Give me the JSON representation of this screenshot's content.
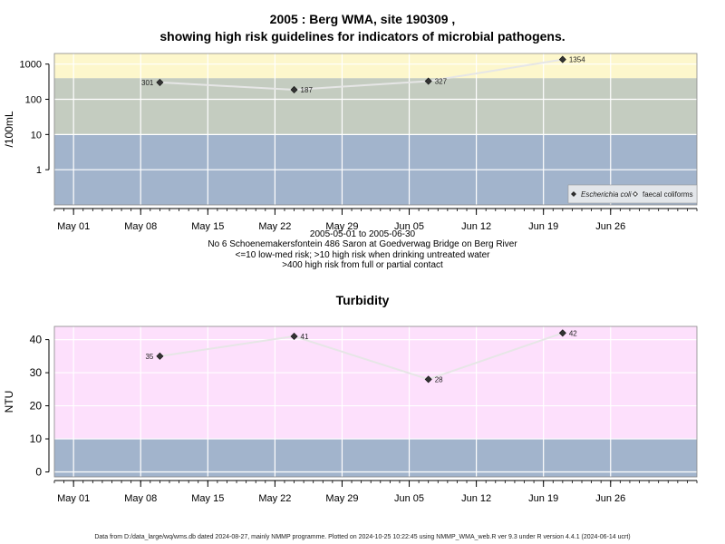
{
  "header": {
    "title_line1": "2005 : Berg WMA, site 190309 ,",
    "title_line2": "showing high risk guidelines for indicators of microbial pathogens."
  },
  "caption": {
    "line1": "2005-05-01 to 2005-06-30",
    "line2": "No 6 Schoenemakersfontein 486 Saron at Goedverwag Bridge on Berg River",
    "line3": "<=10 low-med risk; >10 high risk when drinking untreated water",
    "line4": ">400 high risk from full or partial contact"
  },
  "footer": {
    "text": "Data from D:/data_large/wq/wms.db dated 2024-08-27, mainly NMMP programme. Plotted on 2024-10-25 10:22:45 using NMMP_WMA_web.R ver 9.3 under R version 4.4.1 (2024-06-14 ucrt)"
  },
  "colors": {
    "band_blue": "#a2b4cc",
    "band_grey_green": "#c4ccc0",
    "band_yellow": "#fdf7cc",
    "band_pink": "#fde0fc",
    "series_line": "#e6e6e6",
    "point": "#333333"
  },
  "chart_data": [
    {
      "type": "line",
      "title": "",
      "xlabel": "",
      "ylabel": "/100mL",
      "y_scale": "log10",
      "ylim": [
        0.1,
        2000
      ],
      "y_ticks": [
        1,
        10,
        100,
        1000
      ],
      "y_tick_labels": [
        "1",
        "10",
        "100",
        "1000"
      ],
      "xlim": [
        "2005-04-29",
        "2005-07-05"
      ],
      "x_ticks": [
        "2005-05-01",
        "2005-05-08",
        "2005-05-15",
        "2005-05-22",
        "2005-05-29",
        "2005-06-05",
        "2005-06-12",
        "2005-06-19",
        "2005-06-26"
      ],
      "x_tick_labels": [
        "May 01",
        "May 08",
        "May 15",
        "May 22",
        "May 29",
        "Jun 05",
        "Jun 12",
        "Jun 19",
        "Jun 26"
      ],
      "grid": true,
      "bands": [
        {
          "from": 0.1,
          "to": 10,
          "color": "#a2b4cc"
        },
        {
          "from": 10,
          "to": 400,
          "color": "#c4ccc0"
        },
        {
          "from": 400,
          "to": 2000,
          "color": "#fdf7cc"
        }
      ],
      "series": [
        {
          "name": "Escherichia coli",
          "marker": "filled-diamond",
          "x": [
            "2005-05-10",
            "2005-05-24",
            "2005-06-07",
            "2005-06-21"
          ],
          "y": [
            301,
            187,
            327,
            1354
          ],
          "labels": [
            "301",
            "187",
            "327",
            "1354"
          ],
          "label_side": [
            "left",
            "right",
            "right",
            "right"
          ]
        }
      ],
      "legend": {
        "position": "bottom-right",
        "entries": [
          {
            "label": "Escherichia coli",
            "marker": "filled-diamond",
            "italic": true
          },
          {
            "label": "faecal coliforms",
            "marker": "open-diamond",
            "italic": false
          }
        ]
      }
    },
    {
      "type": "line",
      "title": "Turbidity",
      "xlabel": "",
      "ylabel": "NTU",
      "y_scale": "linear",
      "ylim": [
        -1.5,
        44
      ],
      "y_ticks": [
        0,
        10,
        20,
        30,
        40
      ],
      "y_tick_labels": [
        "0",
        "10",
        "20",
        "30",
        "40"
      ],
      "xlim": [
        "2005-04-29",
        "2005-07-05"
      ],
      "x_ticks": [
        "2005-05-01",
        "2005-05-08",
        "2005-05-15",
        "2005-05-22",
        "2005-05-29",
        "2005-06-05",
        "2005-06-12",
        "2005-06-19",
        "2005-06-26"
      ],
      "x_tick_labels": [
        "May 01",
        "May 08",
        "May 15",
        "May 22",
        "May 29",
        "Jun 05",
        "Jun 12",
        "Jun 19",
        "Jun 26"
      ],
      "grid": true,
      "bands": [
        {
          "from": -1.5,
          "to": 10,
          "color": "#a2b4cc"
        },
        {
          "from": 10,
          "to": 44,
          "color": "#fde0fc"
        }
      ],
      "series": [
        {
          "name": "",
          "marker": "filled-diamond",
          "x": [
            "2005-05-10",
            "2005-05-24",
            "2005-06-07",
            "2005-06-21"
          ],
          "y": [
            35,
            41,
            28,
            42
          ],
          "labels": [
            "35",
            "41",
            "28",
            "42"
          ],
          "label_side": [
            "left",
            "right",
            "right",
            "right"
          ]
        }
      ]
    }
  ]
}
